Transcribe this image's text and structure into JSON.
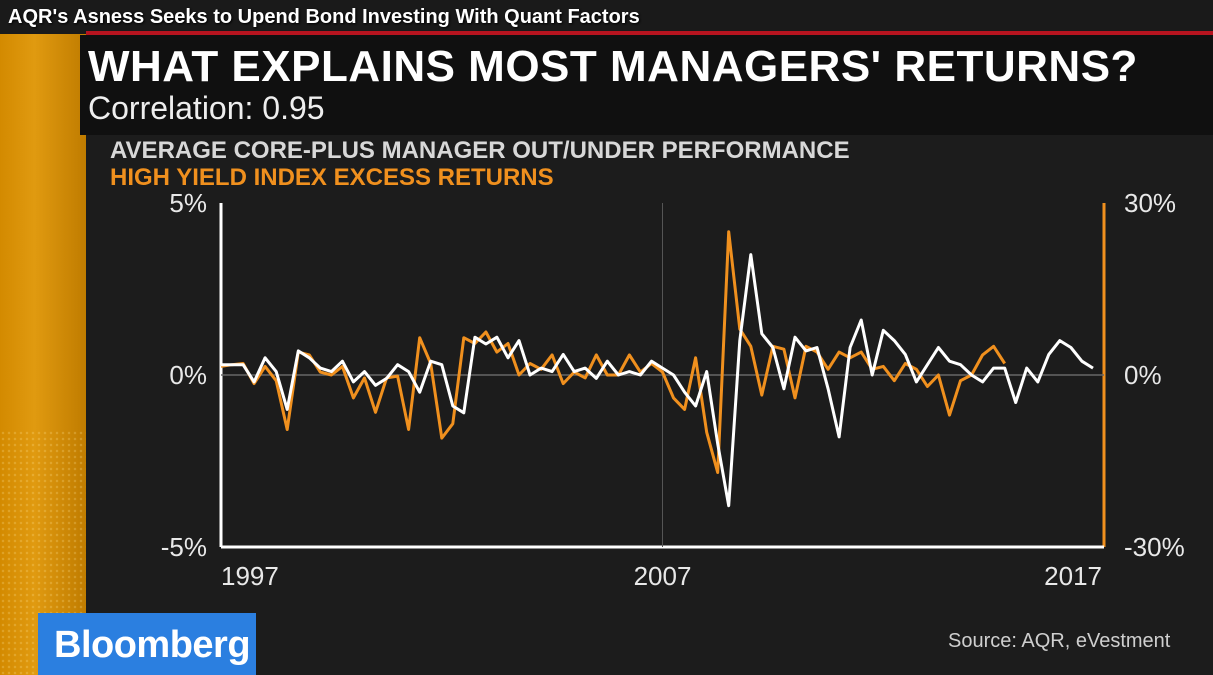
{
  "video": {
    "title": "AQR's Asness Seeks to Upend Bond Investing With Quant Factors"
  },
  "graphic": {
    "title": "WHAT EXPLAINS MOST MANAGERS' RETURNS?",
    "subtitle": "Correlation: 0.95",
    "source": "Source: AQR, eVestment",
    "brand": "Bloomberg"
  },
  "colors": {
    "orange": "#f0901e",
    "white": "#ffffff",
    "brand_blue": "#2b7fe0",
    "accent_red": "#b7141f"
  },
  "chart_data": {
    "type": "line",
    "title": "",
    "legend": [
      {
        "name": "AVERAGE CORE-PLUS MANAGER OUT/UNDER PERFORMANCE",
        "color": "#ffffff",
        "axis": "left"
      },
      {
        "name": "HIGH YIELD INDEX EXCESS RETURNS",
        "color": "#f0901e",
        "axis": "right"
      }
    ],
    "x_ticks": [
      "1997",
      "2007",
      "2017"
    ],
    "x_range": [
      1997,
      2017
    ],
    "left_axis": {
      "ticks": [
        "5%",
        "0%",
        "-5%"
      ],
      "range": [
        -5,
        5
      ],
      "unit": "%"
    },
    "right_axis": {
      "ticks": [
        "30%",
        "0%",
        "-30%"
      ],
      "range": [
        -30,
        30
      ],
      "unit": "%"
    },
    "grid": false,
    "series": [
      {
        "name": "AVERAGE CORE-PLUS MANAGER OUT/UNDER PERFORMANCE",
        "color": "#ffffff",
        "axis": "left",
        "points": [
          [
            1997.0,
            0.3
          ],
          [
            1997.25,
            0.3
          ],
          [
            1997.5,
            0.3
          ],
          [
            1997.75,
            -0.2
          ],
          [
            1998.0,
            0.5
          ],
          [
            1998.25,
            0.1
          ],
          [
            1998.5,
            -1.0
          ],
          [
            1998.75,
            0.7
          ],
          [
            1999.0,
            0.5
          ],
          [
            1999.25,
            0.2
          ],
          [
            1999.5,
            0.1
          ],
          [
            1999.75,
            0.4
          ],
          [
            2000.0,
            -0.2
          ],
          [
            2000.25,
            0.1
          ],
          [
            2000.5,
            -0.3
          ],
          [
            2000.75,
            -0.1
          ],
          [
            2001.0,
            0.3
          ],
          [
            2001.25,
            0.1
          ],
          [
            2001.5,
            -0.5
          ],
          [
            2001.75,
            0.4
          ],
          [
            2002.0,
            0.3
          ],
          [
            2002.25,
            -0.9
          ],
          [
            2002.5,
            -1.1
          ],
          [
            2002.75,
            1.1
          ],
          [
            2003.0,
            0.9
          ],
          [
            2003.25,
            1.1
          ],
          [
            2003.5,
            0.5
          ],
          [
            2003.75,
            1.0
          ],
          [
            2004.0,
            0.0
          ],
          [
            2004.25,
            0.2
          ],
          [
            2004.5,
            0.1
          ],
          [
            2004.75,
            0.6
          ],
          [
            2005.0,
            0.1
          ],
          [
            2005.25,
            0.2
          ],
          [
            2005.5,
            -0.1
          ],
          [
            2005.75,
            0.4
          ],
          [
            2006.0,
            0.0
          ],
          [
            2006.25,
            0.1
          ],
          [
            2006.5,
            0.0
          ],
          [
            2006.75,
            0.4
          ],
          [
            2007.0,
            0.2
          ],
          [
            2007.25,
            0.0
          ],
          [
            2007.5,
            -0.5
          ],
          [
            2007.75,
            -0.9
          ],
          [
            2008.0,
            0.1
          ],
          [
            2008.25,
            -2.0
          ],
          [
            2008.5,
            -3.8
          ],
          [
            2008.75,
            1.0
          ],
          [
            2009.0,
            3.5
          ],
          [
            2009.25,
            1.2
          ],
          [
            2009.5,
            0.8
          ],
          [
            2009.75,
            -0.4
          ],
          [
            2010.0,
            1.1
          ],
          [
            2010.25,
            0.7
          ],
          [
            2010.5,
            0.8
          ],
          [
            2010.75,
            -0.4
          ],
          [
            2011.0,
            -1.8
          ],
          [
            2011.25,
            0.8
          ],
          [
            2011.5,
            1.6
          ],
          [
            2011.75,
            0.0
          ],
          [
            2012.0,
            1.3
          ],
          [
            2012.25,
            1.0
          ],
          [
            2012.5,
            0.6
          ],
          [
            2012.75,
            -0.2
          ],
          [
            2013.0,
            0.3
          ],
          [
            2013.25,
            0.8
          ],
          [
            2013.5,
            0.4
          ],
          [
            2013.75,
            0.3
          ],
          [
            2014.0,
            0.0
          ],
          [
            2014.25,
            -0.2
          ],
          [
            2014.5,
            0.2
          ],
          [
            2014.75,
            0.2
          ],
          [
            2015.0,
            -0.8
          ],
          [
            2015.25,
            0.2
          ],
          [
            2015.5,
            -0.2
          ],
          [
            2015.75,
            0.6
          ],
          [
            2016.0,
            1.0
          ],
          [
            2016.25,
            0.8
          ],
          [
            2016.5,
            0.4
          ],
          [
            2016.75,
            0.2
          ]
        ]
      },
      {
        "name": "HIGH YIELD INDEX EXCESS RETURNS",
        "color": "#f0901e",
        "axis": "right",
        "points": [
          [
            1997.0,
            1.5
          ],
          [
            1997.25,
            1.8
          ],
          [
            1997.5,
            2.0
          ],
          [
            1997.75,
            -1.5
          ],
          [
            1998.0,
            1.5
          ],
          [
            1998.25,
            -1.0
          ],
          [
            1998.5,
            -9.5
          ],
          [
            1998.75,
            4.0
          ],
          [
            1999.0,
            3.5
          ],
          [
            1999.25,
            0.5
          ],
          [
            1999.5,
            0.0
          ],
          [
            1999.75,
            1.5
          ],
          [
            2000.0,
            -4.0
          ],
          [
            2000.25,
            -0.5
          ],
          [
            2000.5,
            -6.5
          ],
          [
            2000.75,
            -0.5
          ],
          [
            2001.0,
            -0.2
          ],
          [
            2001.25,
            -9.5
          ],
          [
            2001.5,
            6.5
          ],
          [
            2001.75,
            2.0
          ],
          [
            2002.0,
            -11.0
          ],
          [
            2002.25,
            -8.5
          ],
          [
            2002.5,
            6.5
          ],
          [
            2002.75,
            5.5
          ],
          [
            2003.0,
            7.5
          ],
          [
            2003.25,
            4.0
          ],
          [
            2003.5,
            5.5
          ],
          [
            2003.75,
            0.0
          ],
          [
            2004.0,
            2.0
          ],
          [
            2004.25,
            1.0
          ],
          [
            2004.5,
            3.5
          ],
          [
            2004.75,
            -1.5
          ],
          [
            2005.0,
            0.5
          ],
          [
            2005.25,
            -0.5
          ],
          [
            2005.5,
            3.5
          ],
          [
            2005.75,
            0.0
          ],
          [
            2006.0,
            0.0
          ],
          [
            2006.25,
            3.5
          ],
          [
            2006.5,
            0.5
          ],
          [
            2006.75,
            2.0
          ],
          [
            2007.0,
            0.5
          ],
          [
            2007.25,
            -4.0
          ],
          [
            2007.5,
            -6.0
          ],
          [
            2007.75,
            3.0
          ],
          [
            2008.0,
            -10.0
          ],
          [
            2008.25,
            -17.0
          ],
          [
            2008.5,
            25.0
          ],
          [
            2008.75,
            8.0
          ],
          [
            2009.0,
            5.0
          ],
          [
            2009.25,
            -3.5
          ],
          [
            2009.5,
            5.0
          ],
          [
            2009.75,
            4.5
          ],
          [
            2010.0,
            -4.0
          ],
          [
            2010.25,
            5.0
          ],
          [
            2010.5,
            4.0
          ],
          [
            2010.75,
            1.0
          ],
          [
            2011.0,
            4.0
          ],
          [
            2011.25,
            3.0
          ],
          [
            2011.5,
            4.0
          ],
          [
            2011.75,
            1.0
          ],
          [
            2012.0,
            1.5
          ],
          [
            2012.25,
            -1.0
          ],
          [
            2012.5,
            2.0
          ],
          [
            2012.75,
            1.0
          ],
          [
            2013.0,
            -2.0
          ],
          [
            2013.25,
            0.0
          ],
          [
            2013.5,
            -7.0
          ],
          [
            2013.75,
            -1.0
          ],
          [
            2014.0,
            0.0
          ],
          [
            2014.25,
            3.5
          ],
          [
            2014.5,
            5.0
          ],
          [
            2014.75,
            2.0
          ]
        ]
      }
    ]
  }
}
